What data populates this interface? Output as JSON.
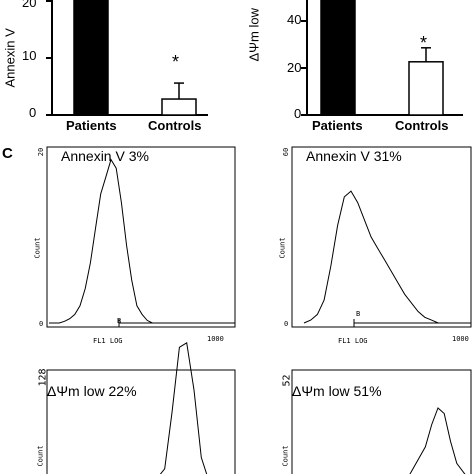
{
  "figure": {
    "panel_label": "C"
  },
  "chart_data": [
    {
      "type": "bar",
      "ylabel": "Annexin V",
      "categories": [
        "Patients",
        "Controls"
      ],
      "values": [
        25,
        3
      ],
      "error": [
        null,
        3
      ],
      "annotations": [
        {
          "category": "Controls",
          "text": "*"
        }
      ],
      "yticks": [
        "20",
        "10",
        "0"
      ],
      "ylim": [
        0,
        25
      ]
    },
    {
      "type": "bar",
      "ylabel": "ΔΨm low",
      "categories": [
        "Patients",
        "Controls"
      ],
      "values": [
        50,
        19
      ],
      "error": [
        null,
        5
      ],
      "annotations": [
        {
          "category": "Controls",
          "text": "*"
        }
      ],
      "yticks": [
        "40",
        "20",
        "0"
      ],
      "ylim": [
        0,
        50
      ]
    },
    {
      "type": "line",
      "title": "Annexin V 3%",
      "ylabel": "Count",
      "xlabel": "FL1 LOG",
      "ytick_top": "20",
      "ytick_bottom": "0",
      "xticks": [
        "1000"
      ],
      "gate_label": "B",
      "x": [
        0,
        5,
        10,
        15,
        20,
        25,
        30,
        35,
        40,
        45,
        50,
        55,
        60,
        65,
        70,
        75,
        80,
        85,
        90,
        95,
        100
      ],
      "y": [
        0,
        0,
        0,
        0.2,
        0.5,
        1,
        2,
        4,
        7,
        11,
        15,
        17,
        19,
        18,
        14,
        9,
        5,
        2,
        1,
        0.3,
        0
      ]
    },
    {
      "type": "line",
      "title": "Annexin V 31%",
      "ylabel": "Count",
      "xlabel": "FL1 LOG",
      "ytick_top": "60",
      "ytick_bottom": "0",
      "xticks": [
        "1000"
      ],
      "gate_label": "B",
      "x": [
        0,
        5,
        10,
        15,
        20,
        25,
        30,
        35,
        40,
        45,
        50,
        55,
        60,
        65,
        70,
        75,
        80,
        85,
        90,
        95,
        100
      ],
      "y": [
        0,
        1,
        3,
        8,
        20,
        34,
        44,
        46,
        42,
        36,
        30,
        26,
        22,
        18,
        14,
        10,
        7,
        4,
        2,
        1,
        0
      ]
    },
    {
      "type": "line",
      "title": "ΔΨm low 22%",
      "ylabel": "Count",
      "ytick_top": "128",
      "x": [
        0,
        10,
        20,
        30,
        40,
        50,
        55,
        60,
        65,
        70,
        75,
        80,
        85,
        90
      ],
      "y": [
        0,
        0,
        0,
        0,
        0,
        0,
        2,
        10,
        60,
        118,
        122,
        80,
        20,
        0
      ]
    },
    {
      "type": "line",
      "title": "ΔΨm low 51%",
      "ylabel": "Count",
      "ytick_top": "52",
      "x": [
        0,
        10,
        20,
        30,
        40,
        50,
        55,
        60,
        65,
        70,
        75,
        80,
        85,
        90,
        100
      ],
      "y": [
        0,
        0,
        0,
        0,
        0,
        0,
        4,
        8,
        12,
        20,
        26,
        24,
        14,
        6,
        0
      ]
    }
  ]
}
